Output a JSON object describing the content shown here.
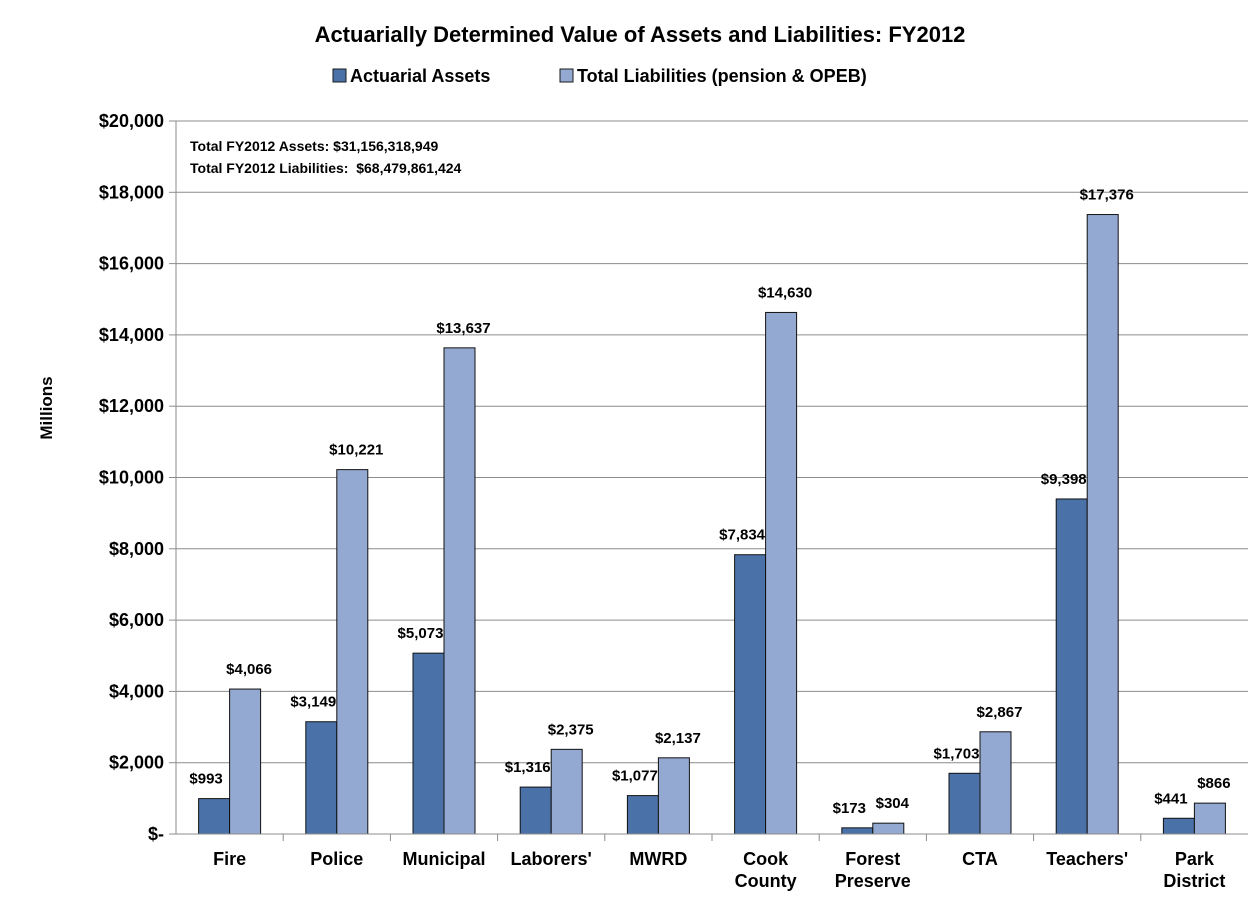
{
  "chart_data": {
    "type": "bar",
    "title": "Actuarially Determined Value of Assets and Liabilities: FY2012",
    "ylabel": "Millions",
    "xlabel": "",
    "ylim": [
      0,
      20000
    ],
    "yticks": [
      0,
      2000,
      4000,
      6000,
      8000,
      10000,
      12000,
      14000,
      16000,
      18000,
      20000
    ],
    "ytick_labels": [
      "$-",
      "$2,000",
      "$4,000",
      "$6,000",
      "$8,000",
      "$10,000",
      "$12,000",
      "$14,000",
      "$16,000",
      "$18,000",
      "$20,000"
    ],
    "grid": true,
    "legend_position": "top",
    "categories": [
      [
        "Fire"
      ],
      [
        "Police"
      ],
      [
        "Municipal"
      ],
      [
        "Laborers'"
      ],
      [
        "MWRD"
      ],
      [
        "Cook",
        "County"
      ],
      [
        "Forest",
        "Preserve"
      ],
      [
        "CTA"
      ],
      [
        "Teachers'"
      ],
      [
        "Park",
        "District"
      ]
    ],
    "series": [
      {
        "name": "Actuarial Assets",
        "color": "#4a72a8",
        "values": [
          993,
          3149,
          5073,
          1316,
          1077,
          7834,
          173,
          1703,
          9398,
          441
        ],
        "labels": [
          "$993",
          "$3,149",
          "$5,073",
          "$1,316",
          "$1,077",
          "$7,834",
          "$173",
          "$1,703",
          "$9,398",
          "$441"
        ]
      },
      {
        "name": "Total Liabilities (pension & OPEB)",
        "color": "#94a9d1",
        "values": [
          4066,
          10221,
          13637,
          2375,
          2137,
          14630,
          304,
          2867,
          17376,
          866
        ],
        "labels": [
          "$4,066",
          "$10,221",
          "$13,637",
          "$2,375",
          "$2,137",
          "$14,630",
          "$304",
          "$2,867",
          "$17,376",
          "$866"
        ]
      }
    ],
    "annotations": [
      "Total FY2012 Assets: $31,156,318,949",
      "Total FY2012 Liabilities:  $68,479,861,424"
    ]
  }
}
